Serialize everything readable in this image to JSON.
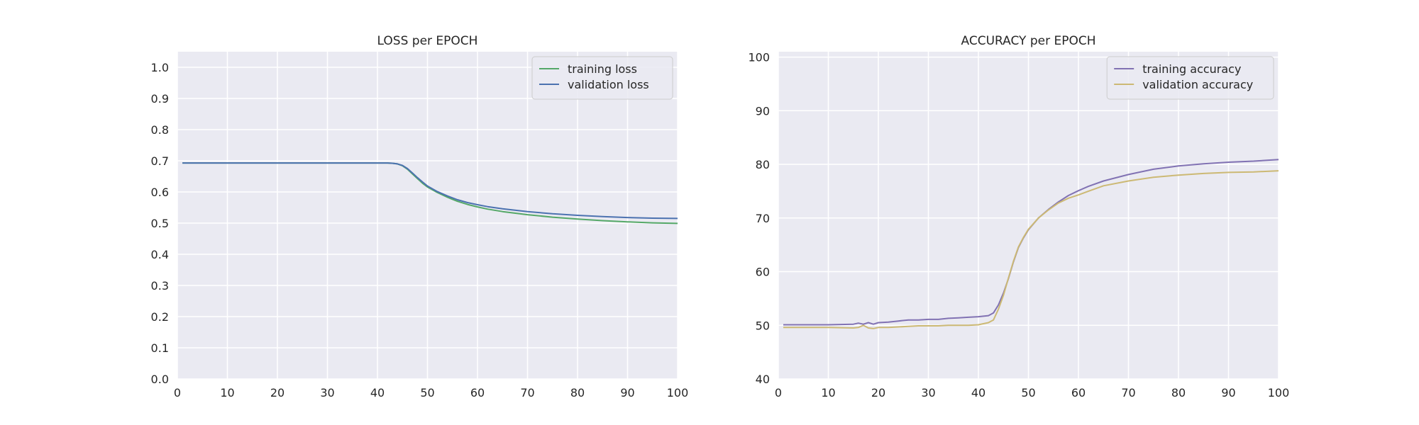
{
  "chart_data": [
    {
      "type": "line",
      "title": "LOSS per EPOCH",
      "xlabel": "",
      "ylabel": "",
      "xlim": [
        0,
        100
      ],
      "ylim": [
        0,
        1.05
      ],
      "xticks": [
        0,
        10,
        20,
        30,
        40,
        50,
        60,
        70,
        80,
        90,
        100
      ],
      "yticks": [
        0.0,
        0.1,
        0.2,
        0.3,
        0.4,
        0.5,
        0.6,
        0.7,
        0.8,
        0.9,
        1.0
      ],
      "ytick_decimals": 1,
      "grid": true,
      "legend_position": "top-right",
      "series": [
        {
          "name": "training loss",
          "color": "#55a868",
          "x": [
            1,
            10,
            20,
            30,
            40,
            42,
            43,
            44,
            45,
            46,
            47,
            48,
            49,
            50,
            52,
            54,
            56,
            58,
            60,
            62,
            65,
            70,
            75,
            80,
            85,
            90,
            95,
            100
          ],
          "values": [
            0.693,
            0.693,
            0.693,
            0.693,
            0.693,
            0.693,
            0.692,
            0.69,
            0.684,
            0.673,
            0.658,
            0.643,
            0.628,
            0.616,
            0.598,
            0.583,
            0.57,
            0.56,
            0.552,
            0.545,
            0.537,
            0.527,
            0.519,
            0.513,
            0.508,
            0.504,
            0.501,
            0.499
          ]
        },
        {
          "name": "validation loss",
          "color": "#4c72b0",
          "x": [
            1,
            10,
            20,
            30,
            40,
            42,
            43,
            44,
            45,
            46,
            47,
            48,
            49,
            50,
            52,
            54,
            56,
            58,
            60,
            62,
            65,
            70,
            75,
            80,
            85,
            90,
            95,
            100
          ],
          "values": [
            0.693,
            0.693,
            0.693,
            0.693,
            0.693,
            0.693,
            0.692,
            0.69,
            0.685,
            0.675,
            0.661,
            0.646,
            0.632,
            0.619,
            0.601,
            0.587,
            0.575,
            0.566,
            0.559,
            0.553,
            0.546,
            0.537,
            0.53,
            0.525,
            0.521,
            0.518,
            0.516,
            0.515
          ]
        }
      ]
    },
    {
      "type": "line",
      "title": "ACCURACY per EPOCH",
      "xlabel": "",
      "ylabel": "",
      "xlim": [
        0,
        100
      ],
      "ylim": [
        40,
        101
      ],
      "xticks": [
        0,
        10,
        20,
        30,
        40,
        50,
        60,
        70,
        80,
        90,
        100
      ],
      "yticks": [
        40,
        50,
        60,
        70,
        80,
        90,
        100
      ],
      "ytick_decimals": 0,
      "grid": true,
      "legend_position": "top-right",
      "series": [
        {
          "name": "training accuracy",
          "color": "#8172b3",
          "x": [
            1,
            5,
            10,
            15,
            16,
            17,
            18,
            19,
            20,
            22,
            24,
            26,
            28,
            30,
            32,
            34,
            36,
            38,
            40,
            42,
            43,
            44,
            45,
            46,
            47,
            48,
            49,
            50,
            52,
            54,
            56,
            58,
            60,
            62,
            65,
            70,
            75,
            80,
            85,
            90,
            95,
            100
          ],
          "values": [
            50.1,
            50.1,
            50.1,
            50.2,
            50.4,
            50.2,
            50.5,
            50.2,
            50.5,
            50.6,
            50.8,
            51.0,
            51.0,
            51.1,
            51.1,
            51.3,
            51.4,
            51.5,
            51.6,
            51.8,
            52.3,
            53.8,
            56.0,
            58.7,
            61.8,
            64.5,
            66.3,
            67.8,
            70.0,
            71.6,
            73.0,
            74.2,
            75.1,
            75.9,
            76.9,
            78.1,
            79.1,
            79.7,
            80.1,
            80.4,
            80.6,
            80.9
          ]
        },
        {
          "name": "validation accuracy",
          "color": "#ccb974",
          "x": [
            1,
            5,
            10,
            15,
            16,
            17,
            18,
            19,
            20,
            22,
            24,
            26,
            28,
            30,
            32,
            34,
            36,
            38,
            40,
            42,
            43,
            44,
            45,
            46,
            47,
            48,
            49,
            50,
            52,
            54,
            56,
            58,
            60,
            62,
            65,
            70,
            75,
            80,
            85,
            90,
            95,
            100
          ],
          "values": [
            49.6,
            49.6,
            49.6,
            49.5,
            49.6,
            50.0,
            49.5,
            49.4,
            49.6,
            49.6,
            49.7,
            49.8,
            49.9,
            49.9,
            49.9,
            50.0,
            50.0,
            50.0,
            50.1,
            50.5,
            51.0,
            53.0,
            55.6,
            58.8,
            61.9,
            64.6,
            66.4,
            67.9,
            70.0,
            71.5,
            72.8,
            73.7,
            74.3,
            75.0,
            76.0,
            76.9,
            77.6,
            78.0,
            78.3,
            78.5,
            78.6,
            78.8
          ]
        }
      ]
    }
  ]
}
